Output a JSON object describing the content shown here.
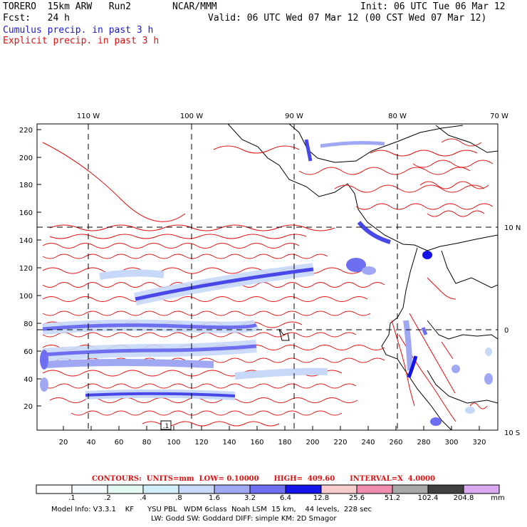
{
  "header": {
    "model_name": "TORERO  15km ARW   Run2",
    "institution": "NCAR/MMM",
    "init": "Init: 06 UTC Tue 06 Mar 12",
    "fcst": "Fcst:   24 h",
    "valid": "Valid: 06 UTC Wed 07 Mar 12 (00 CST Wed 07 Mar 12)",
    "field_blue": "Cumulus precip. in past 3 h",
    "field_red": "Explicit precip. in past 3 h"
  },
  "axes": {
    "top_lon": [
      "110 W",
      "100 W",
      "90 W",
      "80 W",
      "70 W"
    ],
    "right_lat": [
      "10 N",
      "0",
      "10 S"
    ],
    "left_ticks": [
      "220",
      "200",
      "180",
      "160",
      "140",
      "120",
      "100",
      "80",
      "60",
      "40",
      "20"
    ],
    "bottom_ticks": [
      "20",
      "40",
      "60",
      "80",
      "100",
      "120",
      "140",
      "160",
      "180",
      "200",
      "220",
      "240",
      "260",
      "280",
      "300",
      "320"
    ],
    "box_label": ".1"
  },
  "contours_line": "CONTOURS:  UNITS=mm  LOW= 0.10000      HIGH=  409.60      INTERVAL=X  4.0000",
  "legend": {
    "values": [
      ".1",
      ".2",
      ".4",
      ".8",
      "1.6",
      "3.2",
      "6.4",
      "12.8",
      "25.6",
      "51.2",
      "102.4",
      "204.8"
    ],
    "unit": "mm",
    "colors": [
      "#ffffff",
      "#f4fafc",
      "#e4f8f4",
      "#d2eefa",
      "#c8d8f8",
      "#a0a8f4",
      "#6e6ef0",
      "#1414e8",
      "#f8cccc",
      "#f08cb0",
      "#a8a8a8",
      "#404040",
      "#d8a8f0"
    ]
  },
  "model_info": {
    "line1": "Model Info: V3.3.1    KF      YSU PBL   WDM 6class  Noah LSM  15 km,    44 levels,  228 sec",
    "line2": "LW: Godd SW: Goddard DIFF: simple KM: 2D Smagor"
  }
}
